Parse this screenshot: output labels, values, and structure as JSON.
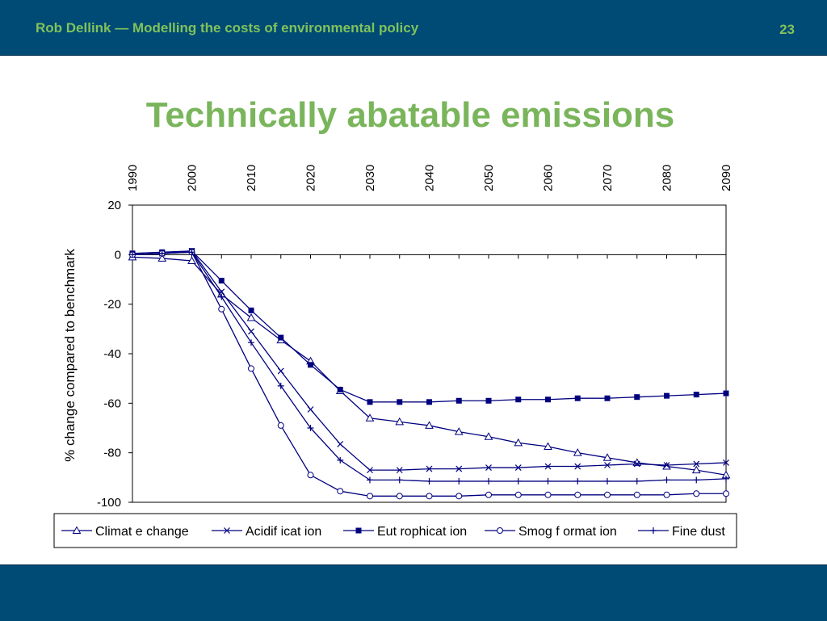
{
  "header": {
    "title": "Rob Dellink — Modelling the costs of environmental policy",
    "slide_number": "23"
  },
  "slide": {
    "title": "Technically abatable emissions"
  },
  "colors": {
    "bar": "#004a76",
    "accent": "#7ab55c",
    "series_line": "#00007f"
  },
  "chart_data": {
    "type": "line",
    "title": "",
    "xlabel": "",
    "ylabel": "% change compared to benchmark",
    "ylim": [
      -100,
      20
    ],
    "yticks": [
      20,
      0,
      -20,
      -40,
      -60,
      -80,
      -100
    ],
    "x": [
      1990,
      1995,
      2000,
      2005,
      2010,
      2015,
      2020,
      2025,
      2030,
      2035,
      2040,
      2045,
      2050,
      2055,
      2060,
      2065,
      2070,
      2075,
      2080,
      2085,
      2090
    ],
    "x_tick_labels": [
      "1990",
      "2000",
      "2010",
      "2020",
      "2030",
      "2040",
      "2050",
      "2060",
      "2070",
      "2080",
      "2090"
    ],
    "legend_position": "bottom",
    "series": [
      {
        "name": "Climat e change",
        "marker": "triangle",
        "values": [
          -1,
          -1.5,
          -2.5,
          -16,
          -25.5,
          -34.5,
          -43,
          -55,
          -66,
          -67.5,
          -69,
          -71.5,
          -73.5,
          -76,
          -77.5,
          -80,
          -82,
          -84,
          -85.5,
          -87,
          -89
        ]
      },
      {
        "name": "Acidif icat ion",
        "marker": "x",
        "values": [
          0,
          0.5,
          1.5,
          -15,
          -31,
          -47,
          -62.5,
          -76.5,
          -87,
          -87,
          -86.5,
          -86.5,
          -86,
          -86,
          -85.5,
          -85.5,
          -85,
          -84.5,
          -85,
          -84.5,
          -84
        ]
      },
      {
        "name": "Eut rophicat ion",
        "marker": "square",
        "values": [
          0.5,
          1,
          1.5,
          -10.5,
          -22.5,
          -33.5,
          -44.5,
          -54.5,
          -59.5,
          -59.5,
          -59.5,
          -59,
          -59,
          -58.5,
          -58.5,
          -58,
          -58,
          -57.5,
          -57,
          -56.5,
          -56
        ]
      },
      {
        "name": "Smog f ormat ion",
        "marker": "circle",
        "values": [
          0,
          0.5,
          1,
          -22,
          -46,
          -69,
          -89,
          -95.5,
          -97.5,
          -97.5,
          -97.5,
          -97.5,
          -97,
          -97,
          -97,
          -97,
          -97,
          -97,
          -97,
          -96.5,
          -96.5
        ]
      },
      {
        "name": "Fine dust",
        "marker": "plus",
        "values": [
          0,
          0.5,
          1,
          -17,
          -35.5,
          -53,
          -70,
          -83,
          -91,
          -91,
          -91.5,
          -91.5,
          -91.5,
          -91.5,
          -91.5,
          -91.5,
          -91.5,
          -91.5,
          -91,
          -91,
          -90.5
        ]
      }
    ]
  }
}
